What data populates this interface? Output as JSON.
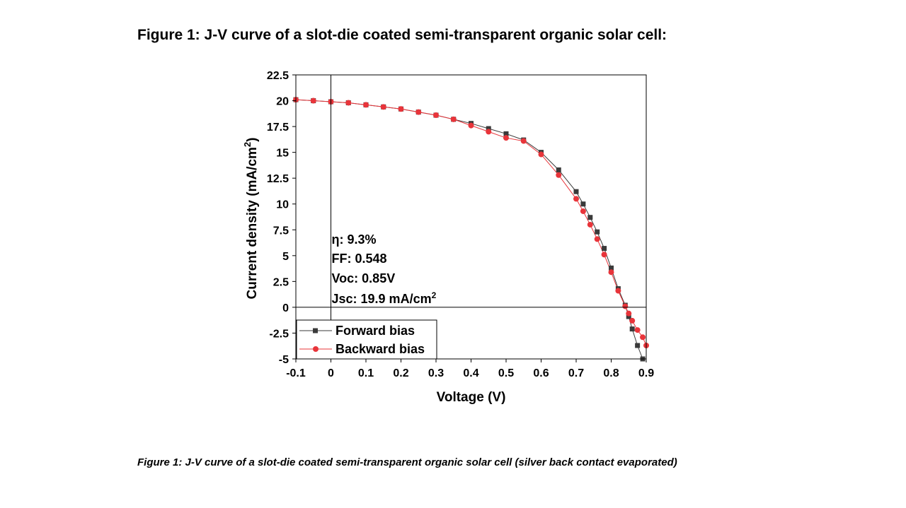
{
  "page": {
    "heading": "Figure 1: J-V curve of a slot-die coated semi-transparent organic solar cell:",
    "caption": "Figure 1: J-V curve of a slot-die coated semi-transparent organic solar cell (silver back contact evaporated)"
  },
  "chart_data": {
    "type": "scatter",
    "title": "",
    "xlabel": "Voltage (V)",
    "ylabel_main": "Current density (mA/cm",
    "ylabel_sup": "2",
    "ylabel_end": ")",
    "xlim": [
      -0.1,
      0.9
    ],
    "ylim": [
      -5,
      22.5
    ],
    "x_ticks": [
      -0.1,
      0,
      0.1,
      0.2,
      0.3,
      0.4,
      0.5,
      0.6,
      0.7,
      0.8,
      0.9
    ],
    "x_tick_labels": [
      "-0.1",
      "0",
      "0.1",
      "0.2",
      "0.3",
      "0.4",
      "0.5",
      "0.6",
      "0.7",
      "0.8",
      "0.9"
    ],
    "y_ticks": [
      -5,
      -2.5,
      0,
      2.5,
      5,
      7.5,
      10,
      12.5,
      15,
      17.5,
      20,
      22.5
    ],
    "y_tick_labels": [
      "-5",
      "-2.5",
      "0",
      "2.5",
      "5",
      "7.5",
      "10",
      "12.5",
      "15",
      "17.5",
      "20",
      "22.5"
    ],
    "grid": false,
    "legend_position": "bottom-left",
    "annotations": [
      {
        "text": "η: 9.3%"
      },
      {
        "text": "FF: 0.548"
      },
      {
        "text": "Voc: 0.85V"
      },
      {
        "text": "Jsc: 19.9 mA/cm",
        "sup": "2"
      }
    ],
    "series": [
      {
        "name": "Forward bias",
        "color": "#3a3a3a",
        "marker": "square",
        "x": [
          -0.1,
          -0.05,
          0,
          0.05,
          0.1,
          0.15,
          0.2,
          0.25,
          0.3,
          0.35,
          0.4,
          0.45,
          0.5,
          0.55,
          0.6,
          0.65,
          0.7,
          0.72,
          0.74,
          0.76,
          0.78,
          0.8,
          0.82,
          0.84,
          0.85,
          0.86,
          0.875,
          0.89
        ],
        "y": [
          20.1,
          20.0,
          19.9,
          19.8,
          19.6,
          19.4,
          19.2,
          18.9,
          18.6,
          18.2,
          17.8,
          17.3,
          16.8,
          16.2,
          15.0,
          13.3,
          11.2,
          10.0,
          8.7,
          7.3,
          5.7,
          3.8,
          1.8,
          0.2,
          -0.9,
          -2.1,
          -3.7,
          -5.0
        ]
      },
      {
        "name": "Backward bias",
        "color": "#e8343a",
        "marker": "circle",
        "x": [
          -0.1,
          -0.05,
          0,
          0.05,
          0.1,
          0.15,
          0.2,
          0.25,
          0.3,
          0.35,
          0.4,
          0.45,
          0.5,
          0.55,
          0.6,
          0.65,
          0.7,
          0.72,
          0.74,
          0.76,
          0.78,
          0.8,
          0.82,
          0.84,
          0.85,
          0.86,
          0.875,
          0.89,
          0.9
        ],
        "y": [
          20.1,
          20.0,
          19.9,
          19.8,
          19.6,
          19.4,
          19.2,
          18.9,
          18.6,
          18.2,
          17.6,
          17.0,
          16.4,
          16.1,
          14.8,
          12.8,
          10.5,
          9.3,
          8.0,
          6.6,
          5.1,
          3.4,
          1.6,
          0.1,
          -0.6,
          -1.3,
          -2.2,
          -2.9,
          -3.7
        ]
      }
    ]
  }
}
